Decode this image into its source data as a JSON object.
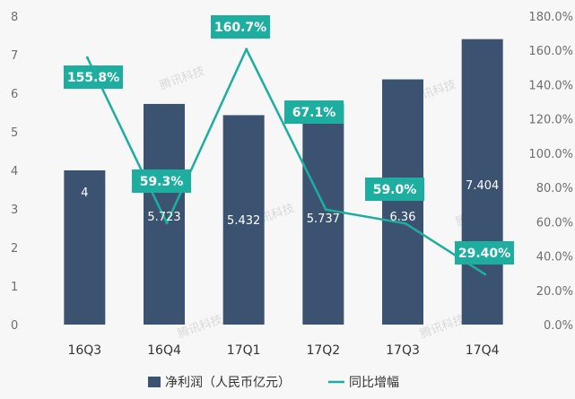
{
  "chart_data": {
    "type": "bar",
    "categories": [
      "16Q3",
      "16Q4",
      "17Q1",
      "17Q2",
      "17Q3",
      "17Q4"
    ],
    "series": [
      {
        "name": "净利润（人民币亿元）",
        "type": "bar",
        "axis": "left",
        "values": [
          4,
          5.723,
          5.432,
          5.737,
          6.36,
          7.404
        ],
        "labels": [
          "4",
          "5.723",
          "5.432",
          "5.737",
          "6.36",
          "7.404"
        ],
        "color": "#3b5370"
      },
      {
        "name": "同比增幅",
        "type": "line",
        "axis": "right",
        "values": [
          155.8,
          59.3,
          160.7,
          67.1,
          59.0,
          29.4
        ],
        "labels": [
          "155.8%",
          "59.3%",
          "160.7%",
          "67.1%",
          "59.0%",
          "29.40%"
        ],
        "color": "#1eaea0"
      }
    ],
    "left_axis": {
      "ylim": [
        0,
        8
      ],
      "ticks": [
        "0",
        "1",
        "2",
        "3",
        "4",
        "5",
        "6",
        "7",
        "8"
      ]
    },
    "right_axis": {
      "ylim": [
        0,
        180
      ],
      "ticks": [
        "0.0%",
        "20.0%",
        "40.0%",
        "60.0%",
        "80.0%",
        "100.0%",
        "120.0%",
        "140.0%",
        "160.0%",
        "180.0%"
      ]
    },
    "grid": false,
    "legend": "bottom-center"
  },
  "watermark": "腾讯科技"
}
